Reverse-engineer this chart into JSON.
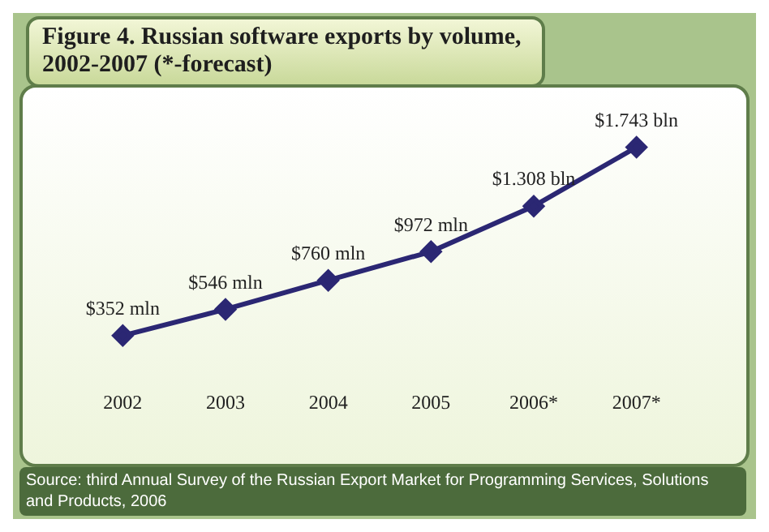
{
  "chart_data": {
    "type": "line",
    "title": "Figure 4. Russian software exports by volume, 2002-2007 (*-forecast)",
    "categories": [
      "2002",
      "2003",
      "2004",
      "2005",
      "2006*",
      "2007*"
    ],
    "series": [
      {
        "color": "#2b2773",
        "values": [
          352,
          546,
          760,
          972,
          1308,
          1743
        ],
        "value_labels": [
          "$352 mln",
          "$546 mln",
          "$760 mln",
          "$972 mln",
          "$1.308 bln",
          "$1.743 bln"
        ]
      }
    ],
    "marker": "diamond",
    "grid": false,
    "legend": false,
    "annotations": [
      "Source: third Annual Survey of the Russian Export Market for Programming Services, Solutions and Products, 2006"
    ]
  }
}
